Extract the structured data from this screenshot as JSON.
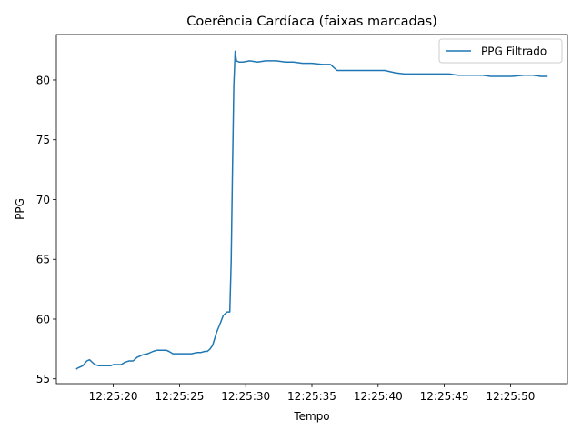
{
  "chart_data": {
    "type": "line",
    "title": "Coerência Cardíaca (faixas marcadas)",
    "xlabel": "Tempo",
    "ylabel": "PPG",
    "x_ticks": [
      "12:25:20",
      "12:25:25",
      "12:25:30",
      "12:25:35",
      "12:25:40",
      "12:25:45",
      "12:25:50"
    ],
    "x_tick_seconds": [
      20,
      25,
      30,
      35,
      40,
      45,
      50
    ],
    "y_ticks": [
      55,
      60,
      65,
      70,
      75,
      80
    ],
    "xlim_seconds": [
      15.7,
      54.3
    ],
    "ylim": [
      54.6,
      83.8
    ],
    "grid": false,
    "legend_position": "top-right",
    "series": [
      {
        "name": "PPG Filtrado",
        "color": "#1f77b4",
        "x_seconds": [
          17.2,
          17.3,
          17.7,
          18.0,
          18.2,
          18.3,
          18.6,
          18.9,
          19.3,
          19.8,
          20.0,
          20.3,
          20.6,
          20.9,
          21.2,
          21.5,
          21.8,
          22.2,
          22.6,
          23.0,
          23.3,
          23.7,
          24.0,
          24.2,
          24.5,
          25.0,
          25.5,
          25.9,
          26.3,
          26.6,
          26.9,
          27.1,
          27.3,
          27.5,
          27.8,
          28.1,
          28.3,
          28.6,
          28.8,
          28.9,
          29.0,
          29.1,
          29.2,
          29.3,
          29.5,
          29.8,
          30.3,
          30.9,
          31.5,
          32.3,
          33.0,
          33.6,
          34.3,
          35.0,
          35.8,
          36.4,
          36.9,
          37.4,
          37.9,
          38.5,
          39.1,
          39.9,
          40.5,
          41.3,
          42.0,
          42.8,
          43.5,
          44.3,
          44.9,
          45.4,
          46.0,
          46.7,
          47.4,
          47.9,
          48.5,
          49.3,
          50.1,
          51.0,
          51.7,
          52.3,
          52.8
        ]
      }
    ],
    "values": [
      55.8,
      55.9,
      56.1,
      56.5,
      56.6,
      56.5,
      56.2,
      56.1,
      56.1,
      56.1,
      56.2,
      56.2,
      56.2,
      56.4,
      56.5,
      56.5,
      56.8,
      57.0,
      57.1,
      57.3,
      57.4,
      57.4,
      57.4,
      57.3,
      57.1,
      57.1,
      57.1,
      57.1,
      57.2,
      57.2,
      57.3,
      57.3,
      57.5,
      57.8,
      58.9,
      59.7,
      60.3,
      60.6,
      60.6,
      64.8,
      72.2,
      79.5,
      82.4,
      81.6,
      81.5,
      81.5,
      81.6,
      81.5,
      81.6,
      81.6,
      81.5,
      81.5,
      81.4,
      81.4,
      81.3,
      81.3,
      80.8,
      80.8,
      80.8,
      80.8,
      80.8,
      80.8,
      80.8,
      80.6,
      80.5,
      80.5,
      80.5,
      80.5,
      80.5,
      80.5,
      80.4,
      80.4,
      80.4,
      80.4,
      80.3,
      80.3,
      80.3,
      80.4,
      80.4,
      80.3,
      80.3
    ]
  }
}
